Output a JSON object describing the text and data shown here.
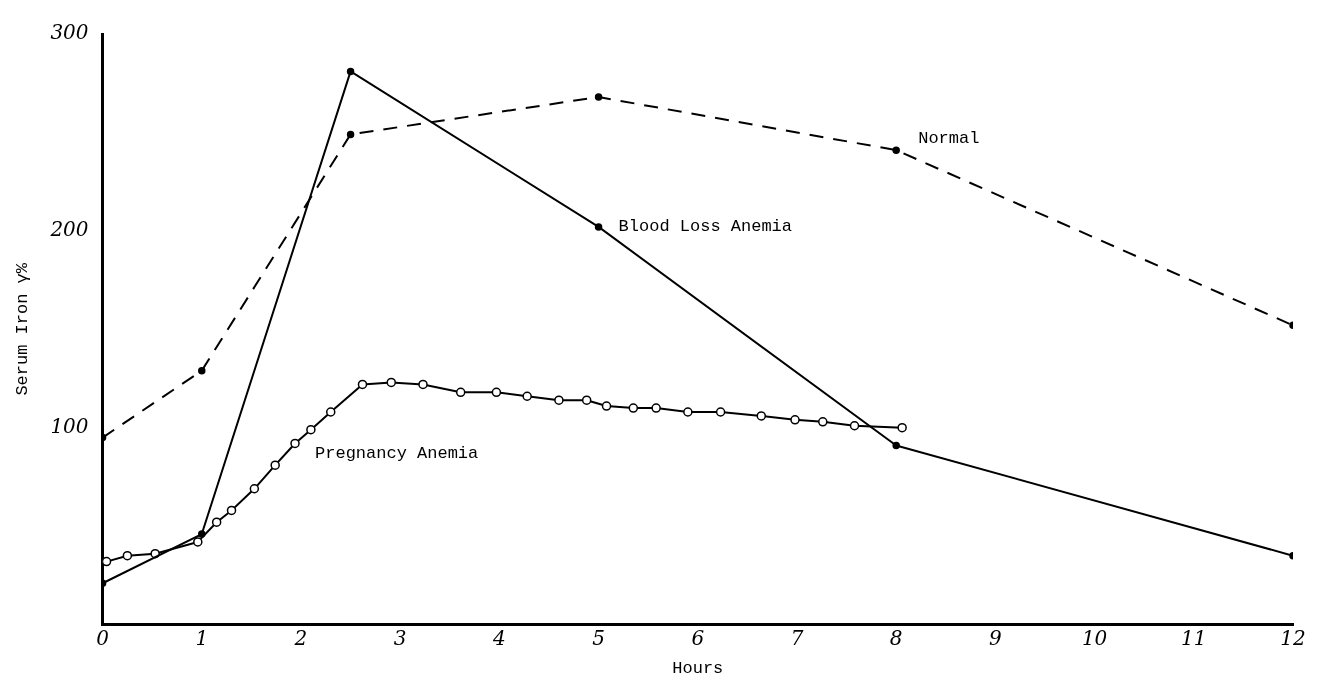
{
  "chart_data": {
    "type": "line",
    "xlabel": "Hours",
    "ylabel": "Serum Iron γ%",
    "xlim": [
      0,
      12
    ],
    "ylim": [
      0,
      300
    ],
    "xticks": [
      0,
      1,
      2,
      3,
      4,
      5,
      6,
      7,
      8,
      9,
      10,
      11,
      12
    ],
    "yticks": [
      100,
      200,
      300
    ],
    "grid": false,
    "legend": false,
    "marker": "circle",
    "series": [
      {
        "name": "Normal",
        "color": "#000000",
        "line_style": "dashed",
        "x": [
          0,
          1,
          2.5,
          5,
          8,
          12
        ],
        "values": [
          95,
          129,
          249,
          268,
          241,
          152
        ]
      },
      {
        "name": "Blood Loss Anemia",
        "color": "#000000",
        "line_style": "solid",
        "x": [
          0,
          1,
          2.5,
          5,
          8,
          12
        ],
        "values": [
          21,
          46,
          281,
          202,
          91,
          35
        ]
      },
      {
        "name": "Pregnancy Anemia",
        "color": "#000000",
        "line_style": "solid",
        "x": [
          0.04,
          0.25,
          0.53,
          0.96,
          1.15,
          1.3,
          1.53,
          1.74,
          1.94,
          2.1,
          2.3,
          2.62,
          2.91,
          3.23,
          3.61,
          3.97,
          4.28,
          4.6,
          4.88,
          5.08,
          5.35,
          5.58,
          5.9,
          6.23,
          6.64,
          6.98,
          7.26,
          7.58,
          8.06
        ],
        "values": [
          32,
          35,
          36,
          42,
          52,
          58,
          69,
          81,
          92,
          99,
          108,
          122,
          123,
          122,
          118,
          118,
          116,
          114,
          114,
          111,
          110,
          110,
          108,
          108,
          106,
          104,
          103,
          101,
          100
        ]
      }
    ]
  }
}
